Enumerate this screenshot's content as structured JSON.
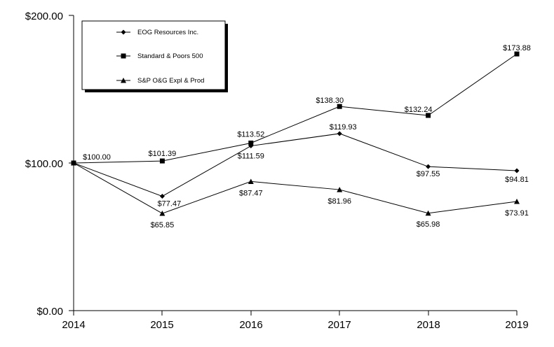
{
  "chart_data": {
    "type": "line",
    "title": "",
    "xlabel": "",
    "ylabel": "",
    "x": [
      "2014",
      "2015",
      "2016",
      "2017",
      "2018",
      "2019"
    ],
    "y_ticks": [
      "$0.00",
      "$100.00",
      "$200.00"
    ],
    "ylim": [
      0,
      200
    ],
    "grid": false,
    "legend_position": "top-left",
    "series": [
      {
        "name": "EOG Resources Inc.",
        "marker": "diamond",
        "values": [
          100.0,
          77.47,
          111.59,
          119.93,
          97.55,
          94.81
        ],
        "labels": [
          "$100.00",
          "$77.47",
          "$111.59",
          "$119.93",
          "$97.55",
          "$94.81"
        ]
      },
      {
        "name": "Standard & Poors 500",
        "marker": "square",
        "values": [
          100.0,
          101.39,
          113.52,
          138.3,
          132.24,
          173.88
        ],
        "labels": [
          "",
          "$101.39",
          "$113.52",
          "$138.30",
          "$132.24",
          "$173.88"
        ]
      },
      {
        "name": "S&P O&G Expl & Prod",
        "marker": "triangle",
        "values": [
          100.0,
          65.85,
          87.47,
          81.96,
          65.98,
          73.91
        ],
        "labels": [
          "",
          "$65.85",
          "$87.47",
          "$81.96",
          "$65.98",
          "$73.91"
        ]
      }
    ]
  }
}
